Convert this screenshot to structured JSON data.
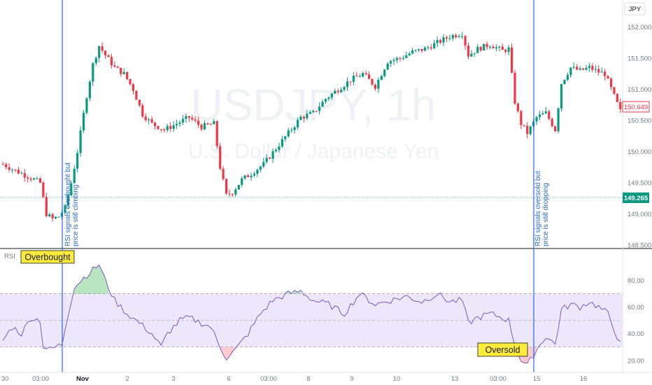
{
  "watermark": {
    "symbol": "USDJPY, 1h",
    "description": "U.S. Dollar / Japanese Yen"
  },
  "currency_label": "JPY",
  "price_badges": {
    "last": "150.649",
    "reference": "149.265"
  },
  "annotations": {
    "note_left": {
      "line1": "RSI signals overbought but",
      "line2": "price is still climbing"
    },
    "note_right": {
      "line1": "RSI signals oversold but",
      "line2": "price is still dropping"
    },
    "overbought_label": "Overbought",
    "oversold_label": "Oversold"
  },
  "colors": {
    "bull": "#089981",
    "bear": "#f23645",
    "rsi_line": "#7e57c2",
    "rsi_band": "#ede7fb",
    "marker_line": "#2962ff",
    "ob_fill": "#7fcf8e",
    "os_fill": "#f7a3a8"
  },
  "chart_data": [
    {
      "type": "candlestick",
      "title": "USDJPY, 1h",
      "subtitle": "U.S. Dollar / Japanese Yen",
      "ylabel": "JPY",
      "ylim": [
        148.48,
        152.12
      ],
      "y_ticks": [
        "152.000",
        "151.500",
        "151.000",
        "150.500",
        "150.000",
        "149.500",
        "149.000",
        "148.500"
      ],
      "x_ticks": [
        "30",
        "03:00",
        "Nov",
        "2",
        "3",
        "6",
        "03:00",
        "8",
        "9",
        "10",
        "13",
        "03:00",
        "15",
        "16"
      ],
      "reference_line": 149.265,
      "last_price": 150.649,
      "bars": 200,
      "close_path": [
        [
          0,
          149.8
        ],
        [
          3,
          149.72
        ],
        [
          6,
          149.65
        ],
        [
          9,
          149.58
        ],
        [
          12,
          149.5
        ],
        [
          14,
          149.0
        ],
        [
          16,
          148.92
        ],
        [
          18,
          148.96
        ],
        [
          20,
          149.1
        ],
        [
          22,
          149.5
        ],
        [
          24,
          150.0
        ],
        [
          27,
          150.9
        ],
        [
          29,
          151.4
        ],
        [
          31,
          151.7
        ],
        [
          33,
          151.55
        ],
        [
          36,
          151.35
        ],
        [
          39,
          151.25
        ],
        [
          42,
          151.0
        ],
        [
          45,
          150.6
        ],
        [
          48,
          150.45
        ],
        [
          52,
          150.35
        ],
        [
          56,
          150.45
        ],
        [
          60,
          150.55
        ],
        [
          64,
          150.4
        ],
        [
          68,
          150.45
        ],
        [
          70,
          149.75
        ],
        [
          72,
          149.3
        ],
        [
          74,
          149.35
        ],
        [
          77,
          149.55
        ],
        [
          80,
          149.65
        ],
        [
          84,
          149.8
        ],
        [
          88,
          150.05
        ],
        [
          92,
          150.3
        ],
        [
          96,
          150.55
        ],
        [
          100,
          150.62
        ],
        [
          104,
          150.85
        ],
        [
          108,
          151.0
        ],
        [
          112,
          151.15
        ],
        [
          116,
          151.25
        ],
        [
          120,
          151.05
        ],
        [
          124,
          151.45
        ],
        [
          128,
          151.5
        ],
        [
          132,
          151.6
        ],
        [
          136,
          151.65
        ],
        [
          140,
          151.75
        ],
        [
          144,
          151.85
        ],
        [
          148,
          151.9
        ],
        [
          150,
          151.55
        ],
        [
          153,
          151.65
        ],
        [
          157,
          151.72
        ],
        [
          161,
          151.62
        ],
        [
          163,
          151.65
        ],
        [
          165,
          150.8
        ],
        [
          167,
          150.45
        ],
        [
          169,
          150.3
        ],
        [
          172,
          150.55
        ],
        [
          175,
          150.62
        ],
        [
          178,
          150.35
        ],
        [
          180,
          151.1
        ],
        [
          183,
          151.35
        ],
        [
          186,
          151.3
        ],
        [
          189,
          151.35
        ],
        [
          192,
          151.28
        ],
        [
          194,
          151.25
        ],
        [
          199,
          150.65
        ]
      ]
    },
    {
      "type": "line",
      "title": "RSI",
      "ylim": [
        12,
        95
      ],
      "y_ticks": [
        "80.00",
        "60.00",
        "40.00",
        "20.00"
      ],
      "levels": {
        "overbought": 70,
        "middle": 50,
        "oversold": 30
      },
      "rsi_path": [
        [
          0,
          35
        ],
        [
          3,
          45
        ],
        [
          6,
          40
        ],
        [
          9,
          52
        ],
        [
          12,
          50
        ],
        [
          13,
          30
        ],
        [
          15,
          28
        ],
        [
          19,
          32
        ],
        [
          21,
          55
        ],
        [
          23,
          75
        ],
        [
          26,
          82
        ],
        [
          29,
          88
        ],
        [
          31,
          92
        ],
        [
          33,
          80
        ],
        [
          36,
          65
        ],
        [
          40,
          55
        ],
        [
          44,
          48
        ],
        [
          48,
          40
        ],
        [
          51,
          30
        ],
        [
          53,
          40
        ],
        [
          57,
          50
        ],
        [
          60,
          52
        ],
        [
          63,
          49
        ],
        [
          67,
          45
        ],
        [
          70,
          30
        ],
        [
          72,
          22
        ],
        [
          75,
          28
        ],
        [
          79,
          40
        ],
        [
          83,
          55
        ],
        [
          87,
          65
        ],
        [
          92,
          70
        ],
        [
          96,
          72
        ],
        [
          100,
          65
        ],
        [
          105,
          62
        ],
        [
          110,
          55
        ],
        [
          115,
          70
        ],
        [
          120,
          62
        ],
        [
          125,
          65
        ],
        [
          130,
          68
        ],
        [
          135,
          64
        ],
        [
          140,
          70
        ],
        [
          144,
          64
        ],
        [
          148,
          65
        ],
        [
          150,
          48
        ],
        [
          153,
          52
        ],
        [
          157,
          55
        ],
        [
          161,
          52
        ],
        [
          163,
          50
        ],
        [
          165,
          32
        ],
        [
          167,
          20
        ],
        [
          169,
          16
        ],
        [
          172,
          28
        ],
        [
          175,
          38
        ],
        [
          178,
          32
        ],
        [
          180,
          58
        ],
        [
          183,
          62
        ],
        [
          186,
          60
        ],
        [
          189,
          64
        ],
        [
          192,
          60
        ],
        [
          195,
          55
        ],
        [
          199,
          32
        ]
      ]
    }
  ]
}
